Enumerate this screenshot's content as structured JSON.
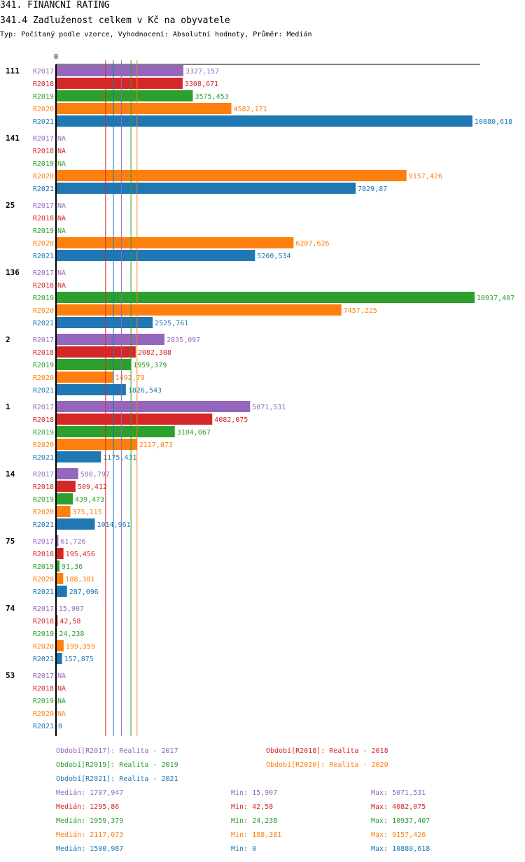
{
  "header": {
    "title": "341. FINANČNÍ RATING",
    "subtitle": "341.4 Zadluženost celkem v Kč na obyvatele",
    "typ": "Typ: Počítaný podle vzorce, Vyhodnocení: Absolutní hodnoty, Průměr: Medián"
  },
  "chart_data": {
    "type": "bar",
    "orientation": "horizontal",
    "zero_label": "0",
    "xlim": [
      0,
      10937.407
    ],
    "series": [
      {
        "name": "R2017",
        "color": "#9467bd"
      },
      {
        "name": "R2018",
        "color": "#d62728"
      },
      {
        "name": "R2019",
        "color": "#2ca02c"
      },
      {
        "name": "R2020",
        "color": "#ff7f0e"
      },
      {
        "name": "R2021",
        "color": "#1f77b4"
      }
    ],
    "groups": [
      {
        "id": "111",
        "values": [
          3327.157,
          3308.671,
          3575.453,
          4582.171,
          10880.618
        ],
        "labels": [
          "3327,157",
          "3308,671",
          "3575,453",
          "4582,171",
          "10880,618"
        ]
      },
      {
        "id": "141",
        "values": [
          null,
          null,
          null,
          9157.426,
          7829.87
        ],
        "labels": [
          "NA",
          "NA",
          "NA",
          "9157,426",
          "7829,87"
        ]
      },
      {
        "id": "25",
        "values": [
          null,
          null,
          null,
          6207.626,
          5200.534
        ],
        "labels": [
          "NA",
          "NA",
          "NA",
          "6207,626",
          "5200,534"
        ]
      },
      {
        "id": "136",
        "values": [
          null,
          null,
          10937.407,
          7457.225,
          2525.761
        ],
        "labels": [
          "NA",
          "NA",
          "10937,407",
          "7457,225",
          "2525,761"
        ]
      },
      {
        "id": "2",
        "values": [
          2835.097,
          2082.308,
          1959.379,
          1492.79,
          1826.543
        ],
        "labels": [
          "2835,097",
          "2082,308",
          "1959,379",
          "1492,79",
          "1826,543"
        ]
      },
      {
        "id": "1",
        "values": [
          5071.531,
          4082.075,
          3104.067,
          2117.073,
          1175.431
        ],
        "labels": [
          "5071,531",
          "4082,075",
          "3104,067",
          "2117,073",
          "1175,431"
        ]
      },
      {
        "id": "14",
        "values": [
          580.797,
          509.412,
          439.473,
          375.115,
          1014.961
        ],
        "labels": [
          "580,797",
          "509,412",
          "439,473",
          "375,115",
          "1014,961"
        ]
      },
      {
        "id": "75",
        "values": [
          61.726,
          195.456,
          91.36,
          188.381,
          287.096
        ],
        "labels": [
          "61,726",
          "195,456",
          "91,36",
          "188,381",
          "287,096"
        ]
      },
      {
        "id": "74",
        "values": [
          15.907,
          42.58,
          24.238,
          199.359,
          157.875
        ],
        "labels": [
          "15,907",
          "42,58",
          "24,238",
          "199,359",
          "157,875"
        ]
      },
      {
        "id": "53",
        "values": [
          null,
          null,
          null,
          null,
          0
        ],
        "labels": [
          "NA",
          "NA",
          "NA",
          "NA",
          "0"
        ]
      }
    ],
    "median_lines": [
      1707.947,
      1295.86,
      1959.379,
      2117.073,
      1500.987
    ]
  },
  "legend": [
    "Období[R2017]: Realita - 2017",
    "Období[R2018]: Realita - 2018",
    "Období[R2019]: Realita - 2019",
    "Období[R2020]: Realita - 2020",
    "Období[R2021]: Realita - 2021"
  ],
  "stats": [
    {
      "median": "Medián: 1707,947",
      "min": "Min: 15,907",
      "max": "Max: 5071,531"
    },
    {
      "median": "Medián: 1295,86",
      "min": "Min: 42,58",
      "max": "Max: 4082,075"
    },
    {
      "median": "Medián: 1959,379",
      "min": "Min: 24,238",
      "max": "Max: 10937,407"
    },
    {
      "median": "Medián: 2117,073",
      "min": "Min: 188,381",
      "max": "Max: 9157,426"
    },
    {
      "median": "Medián: 1500,987",
      "min": "Min: 0",
      "max": "Max: 10880,618"
    }
  ]
}
